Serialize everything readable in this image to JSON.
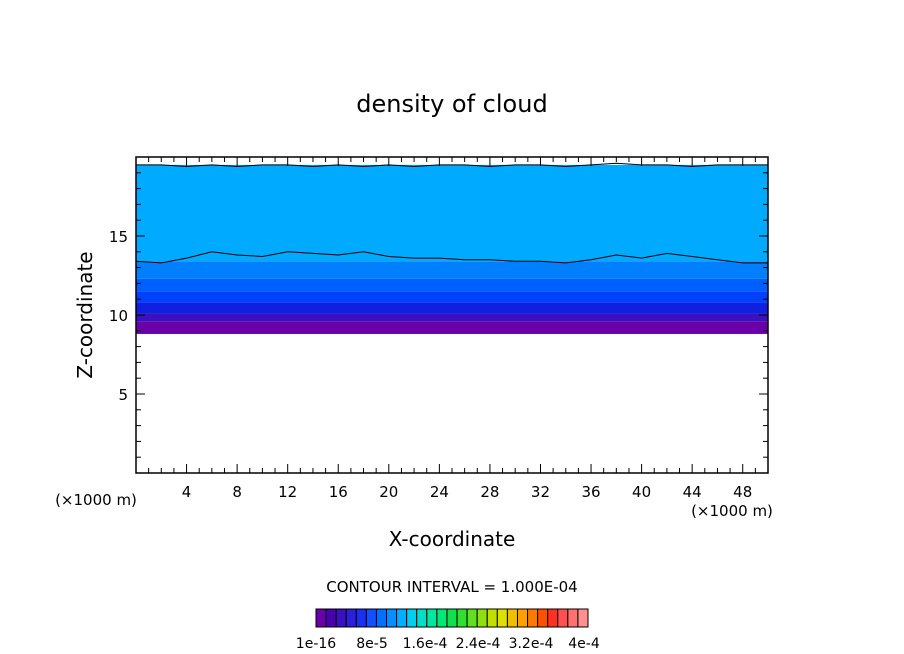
{
  "chart_data": {
    "type": "heatmap",
    "title": "density of cloud",
    "xlabel": "X-coordinate",
    "ylabel": "Z-coordinate",
    "x_unit_left": "(×1000 m)",
    "x_unit_right": "(×1000 m)",
    "xlim": [
      0,
      50
    ],
    "ylim": [
      0,
      20
    ],
    "x_ticks": [
      4,
      8,
      12,
      16,
      20,
      24,
      28,
      32,
      36,
      40,
      44,
      48
    ],
    "x_tick_labels": [
      "4",
      "8",
      "12",
      "16",
      "20",
      "24",
      "28",
      "32",
      "36",
      "40",
      "44",
      "48"
    ],
    "y_ticks": [
      5,
      10,
      15
    ],
    "y_tick_labels": [
      "5",
      "10",
      "15"
    ],
    "contour_interval_label": "CONTOUR INTERVAL = 1.000E-04",
    "colorbar_labels": [
      "1e-16",
      "8e-5",
      "1.6e-4",
      "2.4e-4",
      "3.2e-4",
      "4e-4"
    ],
    "colorbar_colors": [
      "#6a00a8",
      "#4b00b0",
      "#3a10c0",
      "#2a20d8",
      "#1a30f0",
      "#1050ff",
      "#0070ff",
      "#0090ff",
      "#00b0ff",
      "#00d0f0",
      "#00e0c8",
      "#00e8a0",
      "#00e878",
      "#10e050",
      "#30e030",
      "#60e020",
      "#90e010",
      "#c0e000",
      "#e0e000",
      "#f0c000",
      "#ffa000",
      "#ff7800",
      "#ff5000",
      "#ff3020",
      "#ff5050",
      "#ff7070",
      "#ff9090"
    ],
    "layers": [
      {
        "z_bottom": 8.8,
        "z_top": 9.6,
        "color": "#6a00a8"
      },
      {
        "z_bottom": 9.6,
        "z_top": 10.1,
        "color": "#3a10c0"
      },
      {
        "z_bottom": 10.1,
        "z_top": 10.8,
        "color": "#1020e0"
      },
      {
        "z_bottom": 10.8,
        "z_top": 11.5,
        "color": "#0040ff"
      },
      {
        "z_bottom": 11.5,
        "z_top": 12.3,
        "color": "#0060ff"
      },
      {
        "z_bottom": 12.3,
        "z_top": 13.4,
        "color": "#0080ff"
      },
      {
        "z_bottom": 13.4,
        "z_top": 19.5,
        "color": "#00aaff"
      }
    ],
    "contour_lines": [
      {
        "z": [
          13.4,
          13.3,
          13.6,
          14.0,
          13.8,
          13.7,
          14.0,
          13.9,
          13.8,
          14.0,
          13.7,
          13.6,
          13.6,
          13.5,
          13.5,
          13.4,
          13.4,
          13.3,
          13.5,
          13.8,
          13.6,
          13.9,
          13.7,
          13.5,
          13.3,
          13.3
        ]
      },
      {
        "z": [
          19.5,
          19.5,
          19.4,
          19.5,
          19.4,
          19.5,
          19.5,
          19.4,
          19.5,
          19.4,
          19.5,
          19.4,
          19.5,
          19.5,
          19.4,
          19.5,
          19.5,
          19.4,
          19.5,
          19.6,
          19.5,
          19.5,
          19.4,
          19.5,
          19.5,
          19.5
        ]
      }
    ],
    "grid": false
  }
}
